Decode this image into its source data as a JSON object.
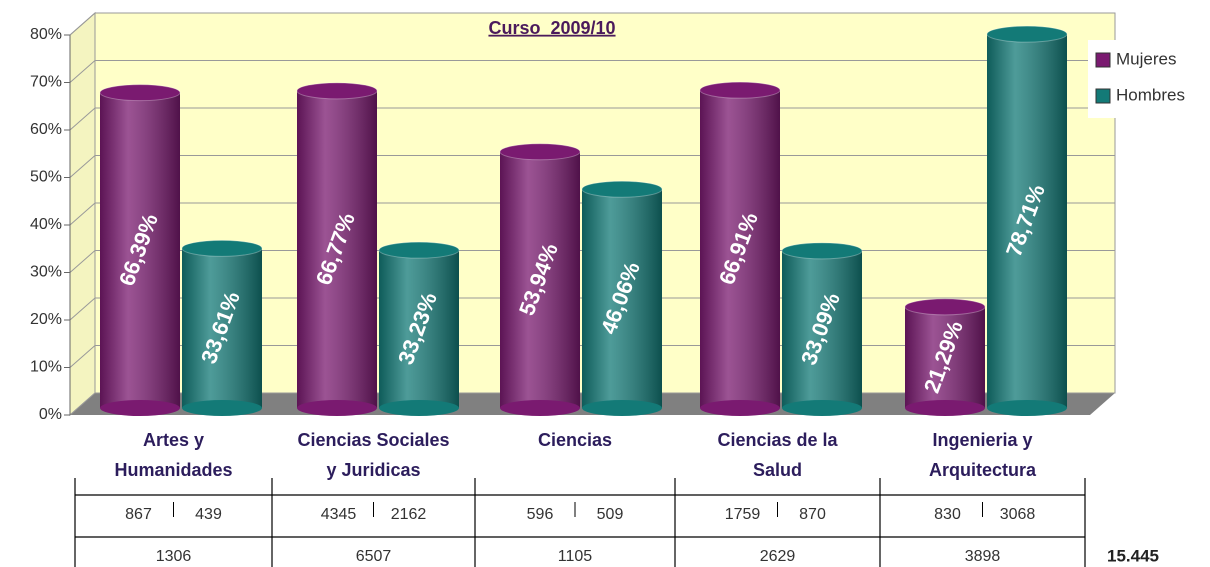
{
  "chart_data": {
    "type": "bar3d",
    "title": "Curso  2009/10",
    "categories": [
      "Artes y\nHumanidades",
      "Ciencias Sociales\ny Juridicas",
      "Ciencias",
      "Ciencias de la\nSalud",
      "Ingenieria y\nArquitectura"
    ],
    "series": [
      {
        "name": "Mujeres",
        "color": "#7a1a70",
        "values": [
          66.39,
          66.77,
          53.94,
          66.91,
          21.29
        ],
        "value_labels": [
          "66,39%",
          "66,77%",
          "53,94%",
          "66,91%",
          "21,29%"
        ]
      },
      {
        "name": "Hombres",
        "color": "#137a77",
        "values": [
          33.61,
          33.23,
          46.06,
          33.09,
          78.71
        ],
        "value_labels": [
          "33,61%",
          "33,23%",
          "46,06%",
          "33,09%",
          "78,71%"
        ]
      }
    ],
    "ylim": [
      0,
      80
    ],
    "yticks": [
      {
        "value": 0,
        "label": "0%"
      },
      {
        "value": 10,
        "label": "10%"
      },
      {
        "value": 20,
        "label": "20%"
      },
      {
        "value": 30,
        "label": "30%"
      },
      {
        "value": 40,
        "label": "40%"
      },
      {
        "value": 50,
        "label": "50%"
      },
      {
        "value": 60,
        "label": "60%"
      },
      {
        "value": 70,
        "label": "70%"
      },
      {
        "value": 80,
        "label": "80%"
      }
    ],
    "grid": true,
    "legend": "right"
  },
  "table": {
    "mujeres": [
      867,
      4345,
      596,
      1759,
      830
    ],
    "hombres": [
      439,
      2162,
      509,
      870,
      3068
    ],
    "totales": [
      1306,
      6507,
      1105,
      2629,
      3898
    ],
    "total": "15.445"
  }
}
